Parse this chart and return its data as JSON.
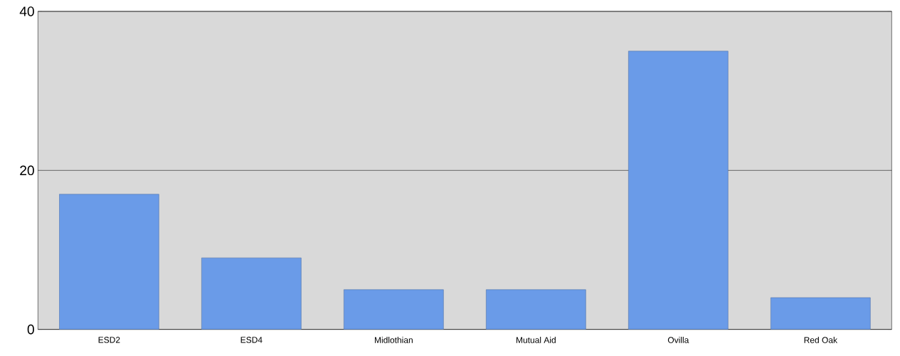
{
  "chart_data": {
    "type": "bar",
    "categories": [
      "ESD2",
      "ESD4",
      "Midlothian",
      "Mutual Aid",
      "Ovilla",
      "Red Oak"
    ],
    "values": [
      17,
      9,
      5,
      5,
      35,
      4
    ],
    "color": "#6a9be8",
    "ylim": [
      0,
      40
    ],
    "yticks": [
      0,
      20,
      40
    ],
    "grid": "y"
  }
}
